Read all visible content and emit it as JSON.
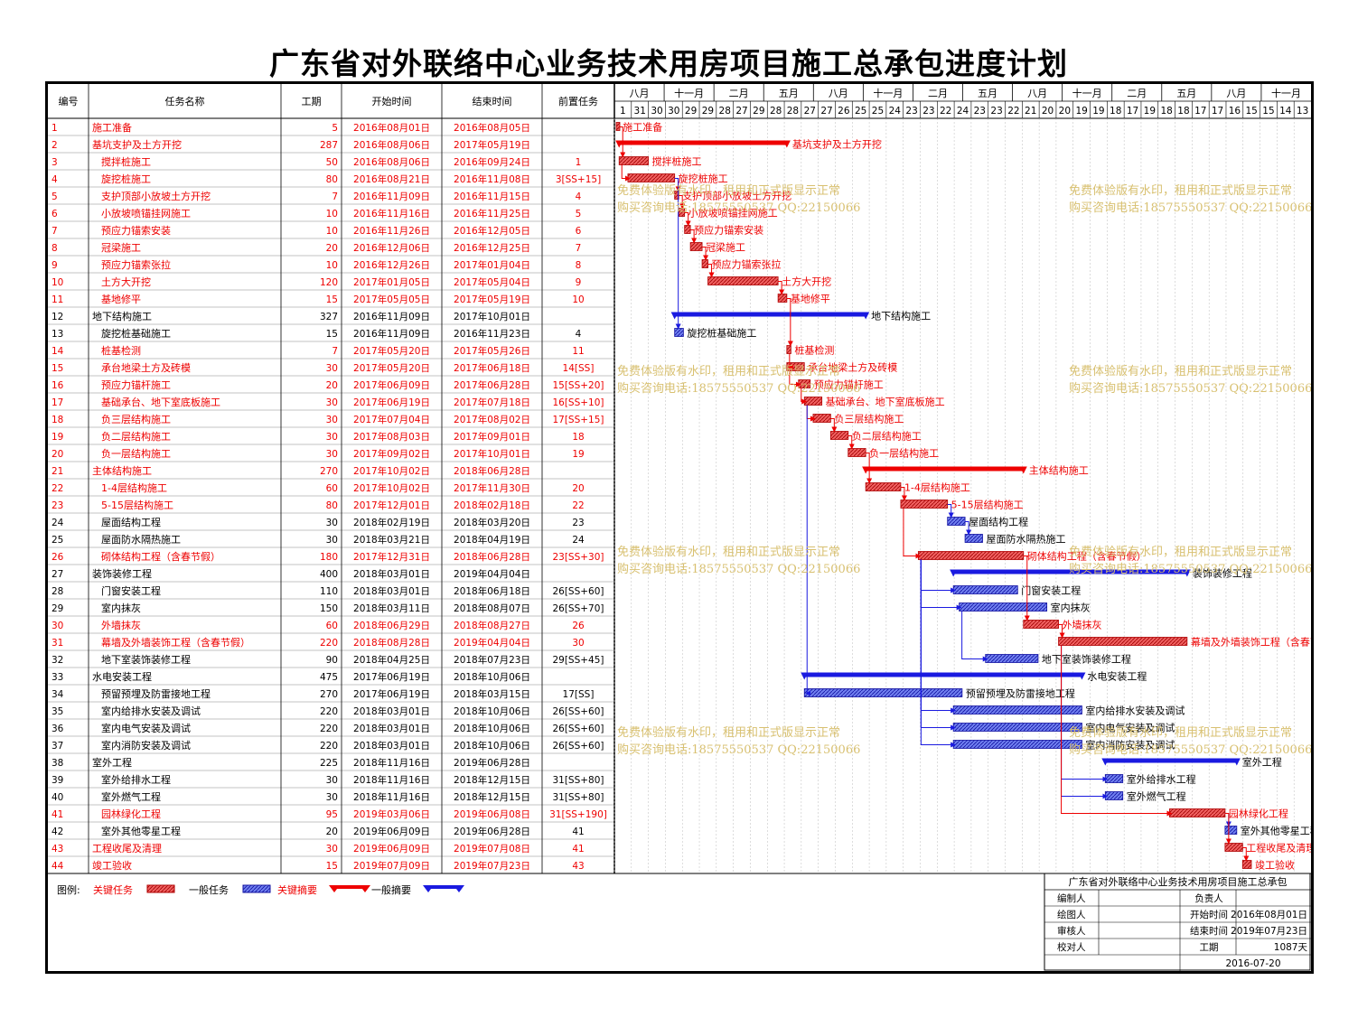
{
  "title": "广东省对外联络中心业务技术用房项目施工总承包进度计划",
  "colors": {
    "critical": "#ee0000",
    "normal": "#1a1ae0",
    "grid": "#999999",
    "watermark": "#d8c070"
  },
  "chart_data": {
    "type": "table",
    "columns": [
      "编号",
      "任务名称",
      "工期",
      "开始时间",
      "结束时间",
      "前置任务"
    ],
    "timescale": {
      "top": [
        "八月",
        "十一月",
        "二月",
        "五月",
        "八月",
        "十一月",
        "二月",
        "五月",
        "八月",
        "十一月",
        "二月",
        "五月",
        "八月",
        "十一月"
      ],
      "bottom": [
        "1",
        "31",
        "30",
        "30",
        "29",
        "29",
        "28",
        "27",
        "29",
        "28",
        "28",
        "27",
        "27",
        "26",
        "25",
        "25",
        "24",
        "23",
        "23",
        "22",
        "24",
        "23",
        "23",
        "22",
        "21",
        "20",
        "20",
        "19",
        "19",
        "18",
        "17",
        "19",
        "18",
        "18",
        "17",
        "17",
        "16",
        "15",
        "15",
        "14",
        "13"
      ]
    },
    "tasks": [
      {
        "id": "1",
        "name": "施工准备",
        "dur": "5",
        "start": "2016年08月01日",
        "end": "2016年08月05日",
        "pred": "",
        "type": "crit",
        "level": 0
      },
      {
        "id": "2",
        "name": "基坑支护及土方开挖",
        "dur": "287",
        "start": "2016年08月06日",
        "end": "2017年05月19日",
        "pred": "",
        "type": "critsum",
        "level": 0
      },
      {
        "id": "3",
        "name": "搅拌桩施工",
        "dur": "50",
        "start": "2016年08月06日",
        "end": "2016年09月24日",
        "pred": "1",
        "type": "crit",
        "level": 1
      },
      {
        "id": "4",
        "name": "旋挖桩施工",
        "dur": "80",
        "start": "2016年08月21日",
        "end": "2016年11月08日",
        "pred": "3[SS+15]",
        "type": "crit",
        "level": 1
      },
      {
        "id": "5",
        "name": "支护顶部小放坡土方开挖",
        "dur": "7",
        "start": "2016年11月09日",
        "end": "2016年11月15日",
        "pred": "4",
        "type": "crit",
        "level": 1
      },
      {
        "id": "6",
        "name": "小放坡喷锚挂网施工",
        "dur": "10",
        "start": "2016年11月16日",
        "end": "2016年11月25日",
        "pred": "5",
        "type": "crit",
        "level": 1
      },
      {
        "id": "7",
        "name": "预应力锚索安装",
        "dur": "10",
        "start": "2016年11月26日",
        "end": "2016年12月05日",
        "pred": "6",
        "type": "crit",
        "level": 1
      },
      {
        "id": "8",
        "name": "冠梁施工",
        "dur": "20",
        "start": "2016年12月06日",
        "end": "2016年12月25日",
        "pred": "7",
        "type": "crit",
        "level": 1
      },
      {
        "id": "9",
        "name": "预应力锚索张拉",
        "dur": "10",
        "start": "2016年12月26日",
        "end": "2017年01月04日",
        "pred": "8",
        "type": "crit",
        "level": 1
      },
      {
        "id": "10",
        "name": "土方大开挖",
        "dur": "120",
        "start": "2017年01月05日",
        "end": "2017年05月04日",
        "pred": "9",
        "type": "crit",
        "level": 1
      },
      {
        "id": "11",
        "name": "基地修平",
        "dur": "15",
        "start": "2017年05月05日",
        "end": "2017年05月19日",
        "pred": "10",
        "type": "crit",
        "level": 1
      },
      {
        "id": "12",
        "name": "地下结构施工",
        "dur": "327",
        "start": "2016年11月09日",
        "end": "2017年10月01日",
        "pred": "",
        "type": "sum",
        "level": 0
      },
      {
        "id": "13",
        "name": "旋挖桩基础施工",
        "dur": "15",
        "start": "2016年11月09日",
        "end": "2016年11月23日",
        "pred": "4",
        "type": "task",
        "level": 1
      },
      {
        "id": "14",
        "name": "桩基检测",
        "dur": "7",
        "start": "2017年05月20日",
        "end": "2017年05月26日",
        "pred": "11",
        "type": "crit",
        "level": 1
      },
      {
        "id": "15",
        "name": "承台地梁土方及砖模",
        "dur": "30",
        "start": "2017年05月20日",
        "end": "2017年06月18日",
        "pred": "14[SS]",
        "type": "crit",
        "level": 1
      },
      {
        "id": "16",
        "name": "预应力锚杆施工",
        "dur": "20",
        "start": "2017年06月09日",
        "end": "2017年06月28日",
        "pred": "15[SS+20]",
        "type": "crit",
        "level": 1
      },
      {
        "id": "17",
        "name": "基础承台、地下室底板施工",
        "dur": "30",
        "start": "2017年06月19日",
        "end": "2017年07月18日",
        "pred": "16[SS+10]",
        "type": "crit",
        "level": 1
      },
      {
        "id": "18",
        "name": "负三层结构施工",
        "dur": "30",
        "start": "2017年07月04日",
        "end": "2017年08月02日",
        "pred": "17[SS+15]",
        "type": "crit",
        "level": 1
      },
      {
        "id": "19",
        "name": "负二层结构施工",
        "dur": "30",
        "start": "2017年08月03日",
        "end": "2017年09月01日",
        "pred": "18",
        "type": "crit",
        "level": 1
      },
      {
        "id": "20",
        "name": "负一层结构施工",
        "dur": "30",
        "start": "2017年09月02日",
        "end": "2017年10月01日",
        "pred": "19",
        "type": "crit",
        "level": 1
      },
      {
        "id": "21",
        "name": "主体结构施工",
        "dur": "270",
        "start": "2017年10月02日",
        "end": "2018年06月28日",
        "pred": "",
        "type": "critsum",
        "level": 0
      },
      {
        "id": "22",
        "name": "1-4层结构施工",
        "dur": "60",
        "start": "2017年10月02日",
        "end": "2017年11月30日",
        "pred": "20",
        "type": "crit",
        "level": 1
      },
      {
        "id": "23",
        "name": "5-15层结构施工",
        "dur": "80",
        "start": "2017年12月01日",
        "end": "2018年02月18日",
        "pred": "22",
        "type": "crit",
        "level": 1
      },
      {
        "id": "24",
        "name": "屋面结构工程",
        "dur": "30",
        "start": "2018年02月19日",
        "end": "2018年03月20日",
        "pred": "23",
        "type": "task",
        "level": 1
      },
      {
        "id": "25",
        "name": "屋面防水隔热施工",
        "dur": "30",
        "start": "2018年03月21日",
        "end": "2018年04月19日",
        "pred": "24",
        "type": "task",
        "level": 1
      },
      {
        "id": "26",
        "name": "砌体结构工程（含春节假）",
        "dur": "180",
        "start": "2017年12月31日",
        "end": "2018年06月28日",
        "pred": "23[SS+30]",
        "type": "crit",
        "level": 1
      },
      {
        "id": "27",
        "name": "装饰装修工程",
        "dur": "400",
        "start": "2018年03月01日",
        "end": "2019年04月04日",
        "pred": "",
        "type": "sum",
        "level": 0
      },
      {
        "id": "28",
        "name": "门窗安装工程",
        "dur": "110",
        "start": "2018年03月01日",
        "end": "2018年06月18日",
        "pred": "26[SS+60]",
        "type": "task",
        "level": 1
      },
      {
        "id": "29",
        "name": "室内抹灰",
        "dur": "150",
        "start": "2018年03月11日",
        "end": "2018年08月07日",
        "pred": "26[SS+70]",
        "type": "task",
        "level": 1
      },
      {
        "id": "30",
        "name": "外墙抹灰",
        "dur": "60",
        "start": "2018年06月29日",
        "end": "2018年08月27日",
        "pred": "26",
        "type": "crit",
        "level": 1
      },
      {
        "id": "31",
        "name": "幕墙及外墙装饰工程（含春节假）",
        "dur": "220",
        "start": "2018年08月28日",
        "end": "2019年04月04日",
        "pred": "30",
        "type": "crit",
        "level": 1
      },
      {
        "id": "32",
        "name": "地下室装饰装修工程",
        "dur": "90",
        "start": "2018年04月25日",
        "end": "2018年07月23日",
        "pred": "29[SS+45]",
        "type": "task",
        "level": 1
      },
      {
        "id": "33",
        "name": "水电安装工程",
        "dur": "475",
        "start": "2017年06月19日",
        "end": "2018年10月06日",
        "pred": "",
        "type": "sum",
        "level": 0
      },
      {
        "id": "34",
        "name": "预留预埋及防雷接地工程",
        "dur": "270",
        "start": "2017年06月19日",
        "end": "2018年03月15日",
        "pred": "17[SS]",
        "type": "task",
        "level": 1
      },
      {
        "id": "35",
        "name": "室内给排水安装及调试",
        "dur": "220",
        "start": "2018年03月01日",
        "end": "2018年10月06日",
        "pred": "26[SS+60]",
        "type": "task",
        "level": 1
      },
      {
        "id": "36",
        "name": "室内电气安装及调试",
        "dur": "220",
        "start": "2018年03月01日",
        "end": "2018年10月06日",
        "pred": "26[SS+60]",
        "type": "task",
        "level": 1
      },
      {
        "id": "37",
        "name": "室内消防安装及调试",
        "dur": "220",
        "start": "2018年03月01日",
        "end": "2018年10月06日",
        "pred": "26[SS+60]",
        "type": "task",
        "level": 1
      },
      {
        "id": "38",
        "name": "室外工程",
        "dur": "225",
        "start": "2018年11月16日",
        "end": "2019年06月28日",
        "pred": "",
        "type": "sum",
        "level": 0
      },
      {
        "id": "39",
        "name": "室外给排水工程",
        "dur": "30",
        "start": "2018年11月16日",
        "end": "2018年12月15日",
        "pred": "31[SS+80]",
        "type": "task",
        "level": 1
      },
      {
        "id": "40",
        "name": "室外燃气工程",
        "dur": "30",
        "start": "2018年11月16日",
        "end": "2018年12月15日",
        "pred": "31[SS+80]",
        "type": "task",
        "level": 1
      },
      {
        "id": "41",
        "name": "园林绿化工程",
        "dur": "95",
        "start": "2019年03月06日",
        "end": "2019年06月08日",
        "pred": "31[SS+190]",
        "type": "crit",
        "level": 1
      },
      {
        "id": "42",
        "name": "室外其他零星工程",
        "dur": "20",
        "start": "2019年06月09日",
        "end": "2019年06月28日",
        "pred": "41",
        "type": "task",
        "level": 1
      },
      {
        "id": "43",
        "name": "工程收尾及清理",
        "dur": "30",
        "start": "2019年06月09日",
        "end": "2019年07月08日",
        "pred": "41",
        "type": "crit",
        "level": 0
      },
      {
        "id": "44",
        "name": "竣工验收",
        "dur": "15",
        "start": "2019年07月09日",
        "end": "2019年07月23日",
        "pred": "43",
        "type": "crit",
        "level": 0
      }
    ]
  },
  "legend": {
    "label": "图例:",
    "items": [
      "关键任务",
      "一般任务",
      "关键摘要",
      "一般摘要"
    ]
  },
  "info": {
    "title": "广东省对外联络中心业务技术用房项目施工总承包",
    "rows": [
      {
        "a": "编制人",
        "b": "",
        "c": "负责人",
        "d": ""
      },
      {
        "a": "绘图人",
        "b": "",
        "c": "开始时间",
        "d": "2016年08月01日"
      },
      {
        "a": "审核人",
        "b": "",
        "c": "结束时间",
        "d": "2019年07月23日"
      },
      {
        "a": "校对人",
        "b": "",
        "c": "工期",
        "d": "1087天"
      }
    ],
    "date": "2016-07-20"
  },
  "watermark": {
    "line1": "免费体验版有水印，租用和正式版显示正常",
    "line2": "购买咨询电话:18575550537 QQ:22150066"
  }
}
